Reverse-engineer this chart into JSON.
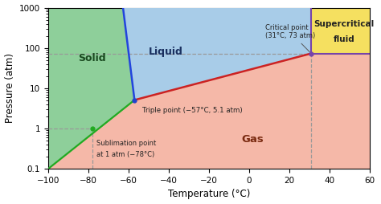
{
  "xlabel": "Temperature (°C)",
  "ylabel": "Pressure (atm)",
  "xlim": [
    -100,
    60
  ],
  "ylim_log": [
    0.1,
    1000
  ],
  "xticks": [
    -100,
    -80,
    -60,
    -40,
    -20,
    0,
    20,
    40,
    60
  ],
  "yticks": [
    0.1,
    1,
    10,
    100,
    1000
  ],
  "ytick_labels": [
    "0.1",
    "1",
    "10",
    "100",
    "1000"
  ],
  "triple_point": [
    -57,
    5.1
  ],
  "critical_point": [
    31,
    73
  ],
  "sublimation_point": [
    -78,
    1
  ],
  "color_solid": "#8ecf9a",
  "color_liquid": "#a8cce8",
  "color_gas": "#f5b8a8",
  "color_supercritical": "#f5e060",
  "color_sublimation_line": "#22aa22",
  "color_fusion_line": "#2244dd",
  "color_vaporization_line": "#cc2222",
  "color_critical_point_marker": "#7744aa",
  "color_triple_point_marker": "#2244cc",
  "color_sublimation_point_marker": "#22aa22",
  "color_dashed": "#999999",
  "color_supercritical_border": "#7744aa",
  "label_solid": "Solid",
  "label_liquid": "Liquid",
  "label_gas": "Gas",
  "label_supercritical_line1": "Supercritical",
  "label_supercritical_line2": "fluid",
  "label_critical": "Critical point\n(31°C, 73 atm)",
  "label_triple": "Triple point (−57°C, 5.1 atm)",
  "label_sublimation_line1": "Sublimation point",
  "label_sublimation_line2": "at 1 atm (−78°C)"
}
